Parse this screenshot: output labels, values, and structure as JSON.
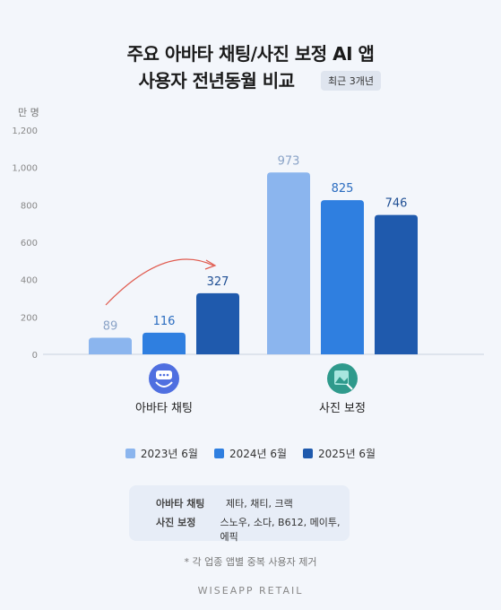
{
  "title_line1": "주요 아바타 채팅/사진 보정 AI 앱",
  "title_line2": "사용자 전년동월 비교",
  "period_badge": "최근 3개년",
  "unit_label": "만 명",
  "colors": {
    "series_2023": "#8bb5ee",
    "series_2024": "#2f7fe0",
    "series_2025": "#1f5aad",
    "arrow": "#e05a4e"
  },
  "chart_data": {
    "type": "bar",
    "categories": [
      "아바타 채팅",
      "사진 보정"
    ],
    "series": [
      {
        "name": "2023년 6월",
        "values": [
          89,
          973
        ]
      },
      {
        "name": "2024년 6월",
        "values": [
          116,
          825
        ]
      },
      {
        "name": "2025년 6월",
        "values": [
          327,
          746
        ]
      }
    ],
    "ylim": [
      0,
      1200
    ],
    "yticks": [
      "0",
      "200",
      "400",
      "600",
      "800",
      "1,000",
      "1,200"
    ],
    "grid": false,
    "legend_position": "bottom",
    "category_icons": [
      "avatar-mask-icon",
      "photo-edit-icon"
    ]
  },
  "notes": [
    {
      "label": "아바타 채팅",
      "apps": "제타, 채티, 크랙"
    },
    {
      "label": "사진 보정",
      "apps": "스노우, 소다, B612, 메이투, 에픽"
    }
  ],
  "footnote": "* 각 업종 앱별 중복 사용자 제거",
  "brand": "WISEAPP  RETAIL"
}
